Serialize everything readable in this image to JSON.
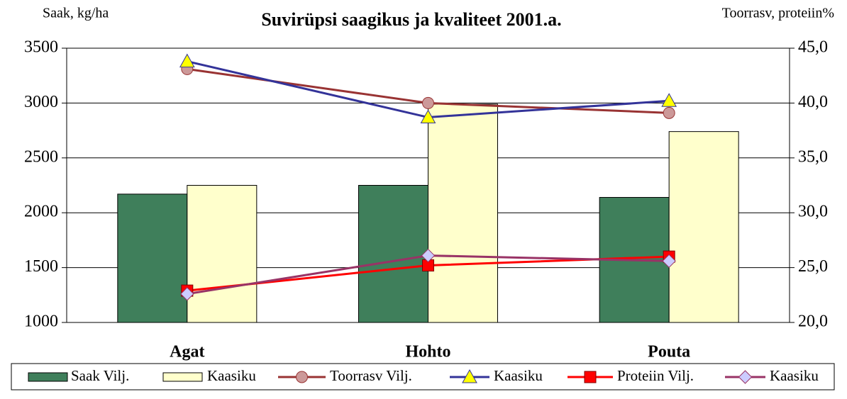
{
  "chart_data": {
    "type": "bar",
    "title": "Suvirüpsi saagikus ja kvaliteet 2001.a.",
    "y_label": "Saak, kg/ha",
    "y2_label": "Toorrasv, proteiin%",
    "categories": [
      "Agat",
      "Hohto",
      "Pouta"
    ],
    "series": [
      {
        "name": "Saak Vilj.",
        "type": "bar",
        "color": "#3f7f5b",
        "values": [
          2170,
          2250,
          2140
        ]
      },
      {
        "name": "Kaasiku",
        "type": "bar",
        "color": "#ffffcc",
        "values": [
          2250,
          2990,
          2740
        ]
      },
      {
        "name": "Toorrasv Vilj.",
        "type": "line",
        "axis": "y2",
        "color": "#993333",
        "marker": "circle",
        "marker_color": "#cc9999",
        "values": [
          43.1,
          40.0,
          39.1
        ]
      },
      {
        "name": "Kaasiku",
        "type": "line",
        "axis": "y2",
        "color": "#333399",
        "marker": "triangle",
        "marker_color": "#ffff00",
        "values": [
          43.8,
          38.7,
          40.2
        ]
      },
      {
        "name": "Proteiin Vilj.",
        "type": "line",
        "axis": "y2",
        "color": "#ff0000",
        "marker": "square",
        "marker_color": "#ff0000",
        "values": [
          22.9,
          25.2,
          26.0
        ]
      },
      {
        "name": "Kaasiku",
        "type": "line",
        "axis": "y2",
        "color": "#993366",
        "marker": "diamond",
        "marker_color": "#ccccff",
        "values": [
          22.6,
          26.1,
          25.6
        ]
      }
    ],
    "ylim": [
      1000,
      3500
    ],
    "yticks": [
      1000,
      1500,
      2000,
      2500,
      3000,
      3500
    ],
    "y2lim": [
      20,
      45
    ],
    "y2ticks": [
      {
        "value": 20,
        "label": "20,0"
      },
      {
        "value": 25,
        "label": "25,0"
      },
      {
        "value": 30,
        "label": "30,0"
      },
      {
        "value": 35,
        "label": "35,0"
      },
      {
        "value": 40,
        "label": "40,0"
      },
      {
        "value": 45,
        "label": "45,0"
      }
    ],
    "grid": true,
    "legend": "bottom"
  }
}
